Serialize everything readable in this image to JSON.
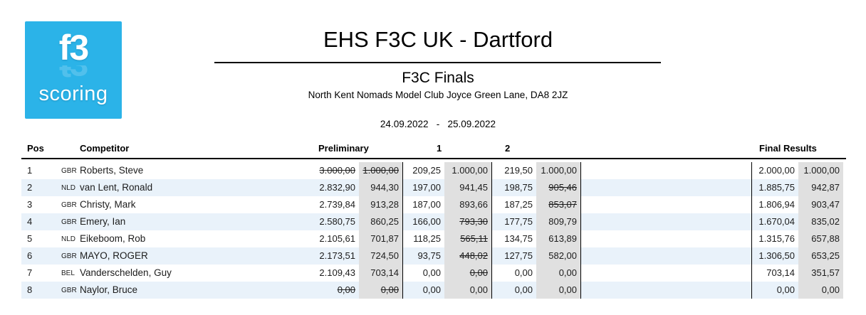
{
  "logo": {
    "line1": "f3",
    "line2": "scoring",
    "bg_color": "#2bb3e8"
  },
  "header": {
    "title": "EHS F3C UK - Dartford",
    "event": "F3C Finals",
    "venue": "North Kent Nomads Model Club Joyce Green Lane, DA8 2JZ",
    "dates": "24.09.2022   -   25.09.2022"
  },
  "colors": {
    "logo_blue": "#2bb3e8",
    "row_stripe_blue": "#e9f2fa",
    "points_column_gray": "#e0e0e0",
    "rule_black": "#000000"
  },
  "table": {
    "headers": {
      "pos": "Pos",
      "competitor": "Competitor",
      "preliminary": "Preliminary",
      "round1": "1",
      "round2": "2",
      "final": "Final Results"
    },
    "rows": [
      {
        "pos": "1",
        "country": "GBR",
        "name": "Roberts, Steve",
        "prelim_score": "3.000,00",
        "prelim_score_struck": true,
        "prelim_pts": "1.000,00",
        "prelim_pts_struck": true,
        "r1_score": "209,25",
        "r1_pts": "1.000,00",
        "r1_pts_struck": false,
        "r2_score": "219,50",
        "r2_pts": "1.000,00",
        "r2_pts_struck": false,
        "final_score": "2.000,00",
        "final_pts": "1.000,00"
      },
      {
        "pos": "2",
        "country": "NLD",
        "name": "van Lent, Ronald",
        "prelim_score": "2.832,90",
        "prelim_score_struck": false,
        "prelim_pts": "944,30",
        "prelim_pts_struck": false,
        "r1_score": "197,00",
        "r1_pts": "941,45",
        "r1_pts_struck": false,
        "r2_score": "198,75",
        "r2_pts": "905,46",
        "r2_pts_struck": true,
        "final_score": "1.885,75",
        "final_pts": "942,87"
      },
      {
        "pos": "3",
        "country": "GBR",
        "name": "Christy, Mark",
        "prelim_score": "2.739,84",
        "prelim_score_struck": false,
        "prelim_pts": "913,28",
        "prelim_pts_struck": false,
        "r1_score": "187,00",
        "r1_pts": "893,66",
        "r1_pts_struck": false,
        "r2_score": "187,25",
        "r2_pts": "853,07",
        "r2_pts_struck": true,
        "final_score": "1.806,94",
        "final_pts": "903,47"
      },
      {
        "pos": "4",
        "country": "GBR",
        "name": "Emery, Ian",
        "prelim_score": "2.580,75",
        "prelim_score_struck": false,
        "prelim_pts": "860,25",
        "prelim_pts_struck": false,
        "r1_score": "166,00",
        "r1_pts": "793,30",
        "r1_pts_struck": true,
        "r2_score": "177,75",
        "r2_pts": "809,79",
        "r2_pts_struck": false,
        "final_score": "1.670,04",
        "final_pts": "835,02"
      },
      {
        "pos": "5",
        "country": "NLD",
        "name": "Eikeboom, Rob",
        "prelim_score": "2.105,61",
        "prelim_score_struck": false,
        "prelim_pts": "701,87",
        "prelim_pts_struck": false,
        "r1_score": "118,25",
        "r1_pts": "565,11",
        "r1_pts_struck": true,
        "r2_score": "134,75",
        "r2_pts": "613,89",
        "r2_pts_struck": false,
        "final_score": "1.315,76",
        "final_pts": "657,88"
      },
      {
        "pos": "6",
        "country": "GBR",
        "name": "MAYO, ROGER",
        "prelim_score": "2.173,51",
        "prelim_score_struck": false,
        "prelim_pts": "724,50",
        "prelim_pts_struck": false,
        "r1_score": "93,75",
        "r1_pts": "448,02",
        "r1_pts_struck": true,
        "r2_score": "127,75",
        "r2_pts": "582,00",
        "r2_pts_struck": false,
        "final_score": "1.306,50",
        "final_pts": "653,25"
      },
      {
        "pos": "7",
        "country": "BEL",
        "name": "Vanderschelden, Guy",
        "prelim_score": "2.109,43",
        "prelim_score_struck": false,
        "prelim_pts": "703,14",
        "prelim_pts_struck": false,
        "r1_score": "0,00",
        "r1_pts": "0,00",
        "r1_pts_struck": true,
        "r2_score": "0,00",
        "r2_pts": "0,00",
        "r2_pts_struck": false,
        "final_score": "703,14",
        "final_pts": "351,57"
      },
      {
        "pos": "8",
        "country": "GBR",
        "name": "Naylor, Bruce",
        "prelim_score": "0,00",
        "prelim_score_struck": true,
        "prelim_pts": "0,00",
        "prelim_pts_struck": true,
        "r1_score": "0,00",
        "r1_pts": "0,00",
        "r1_pts_struck": false,
        "r2_score": "0,00",
        "r2_pts": "0,00",
        "r2_pts_struck": false,
        "final_score": "0,00",
        "final_pts": "0,00"
      }
    ]
  }
}
